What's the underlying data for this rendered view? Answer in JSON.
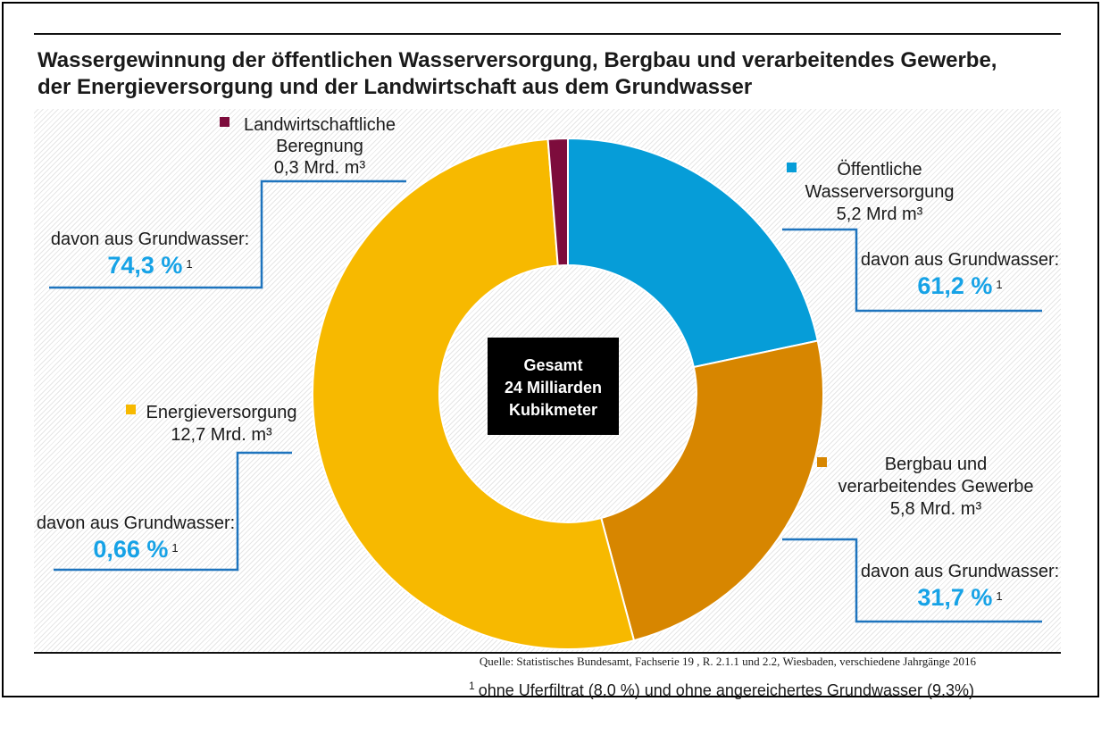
{
  "chart_data": {
    "type": "pie",
    "donut": true,
    "title": "Wassergewinnung der öffentlichen Wasserversorgung, Bergbau und verarbeitendes Gewerbe,\nder Energieversorgung und der Landwirtschaft aus dem Grundwasser",
    "categories": [
      "Öffentliche\nWasserversorgung",
      "Bergbau und\nverarbeitendes Gewerbe",
      "Energieversorgung",
      "Landwirtschaftliche\nBeregnung"
    ],
    "values": [
      5.2,
      5.8,
      12.7,
      0.3
    ],
    "value_labels": [
      "5,2 Mrd m³",
      "5,8 Mrd. m³",
      "12,7 Mrd. m³",
      "0,3 Mrd. m³"
    ],
    "groundwater_share_caption": "davon aus Grundwasser:",
    "groundwater_share_percent": [
      61.2,
      31.7,
      0.66,
      74.3
    ],
    "groundwater_share_labels": [
      "61,2 %",
      "31,7 %",
      "0,66 %",
      "74,3 %"
    ],
    "colors": [
      "#069DD8",
      "#D78600",
      "#F7B900",
      "#7D0C3C"
    ],
    "total": 24,
    "total_label": [
      "Gesamt",
      "24 Milliarden",
      "Kubikmeter"
    ]
  },
  "source": "Quelle: Statistisches Bundesamt, Fachserie 19 , R. 2.1.1 und 2.2, Wiesbaden, verschiedene Jahrgänge 2016",
  "footnote": {
    "marker": "1",
    "text": "ohne Uferfiltrat (8,0 %) und ohne angereichertes Grundwasser (9,3%)"
  },
  "accent_colors": {
    "percent_text": "#16A2E6",
    "connector_lines": "#1E74BE",
    "total_box": "#000000"
  }
}
